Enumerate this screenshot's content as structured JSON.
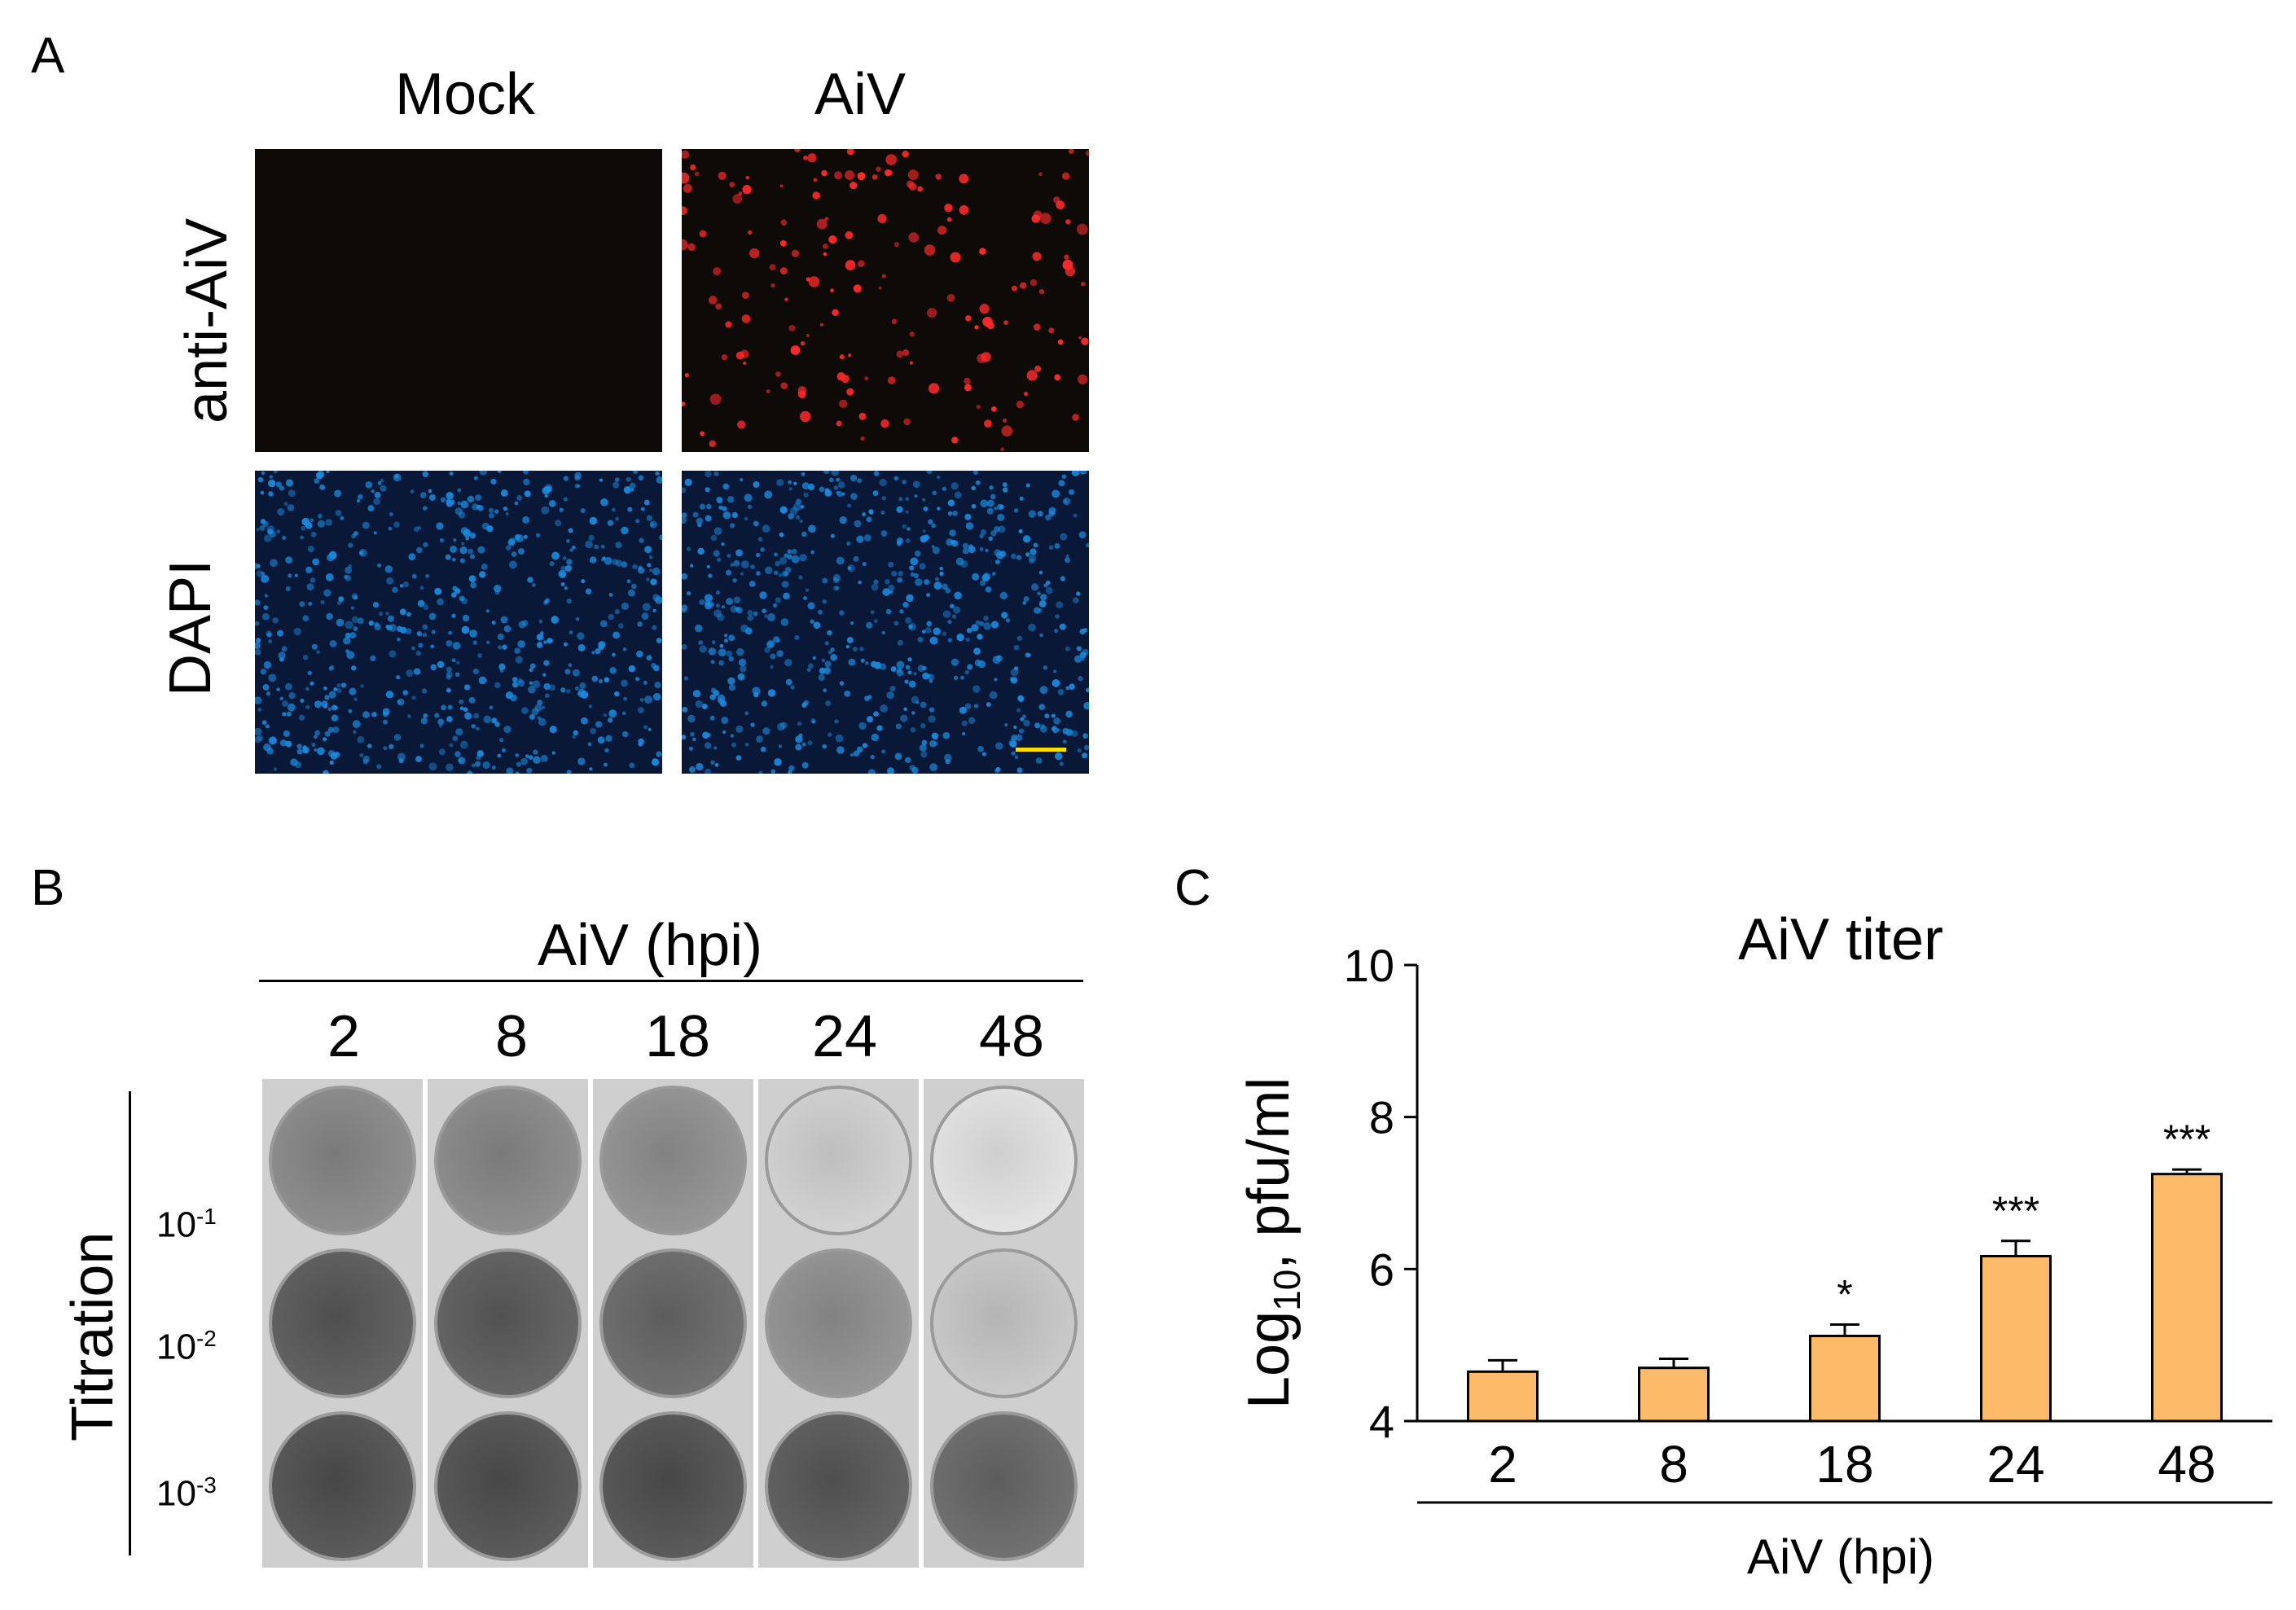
{
  "panels": {
    "A": {
      "letter": "A",
      "col_headers": [
        "Mock",
        "AiV"
      ],
      "row_labels": [
        "anti-AiV",
        "DAPI"
      ]
    },
    "B": {
      "letter": "B",
      "header": "AiV (hpi)",
      "timepoints": [
        "2",
        "8",
        "18",
        "24",
        "48"
      ],
      "row_axis_label": "Titration",
      "dilutions": [
        {
          "base": "10",
          "exp": "-1"
        },
        {
          "base": "10",
          "exp": "-2"
        },
        {
          "base": "10",
          "exp": "-3"
        }
      ]
    },
    "C": {
      "letter": "C"
    }
  },
  "colors": {
    "bar_fill": "#FDBB6A",
    "fluor_red": "#ff2a2a",
    "fluor_blue": "#1a8ce0",
    "scale_bar": "#f5e000"
  },
  "chart_data": {
    "type": "bar",
    "title": "AiV titer",
    "categories": [
      "2",
      "8",
      "18",
      "24",
      "48"
    ],
    "values": [
      4.65,
      4.7,
      5.12,
      6.17,
      7.25
    ],
    "errors": [
      0.15,
      0.12,
      0.15,
      0.2,
      0.06
    ],
    "significance": [
      "",
      "",
      "*",
      "***",
      "***"
    ],
    "xlabel": "AiV (hpi)",
    "ylabel_main": "Log",
    "ylabel_sub": "10",
    "ylabel_rest": ", pfu/ml",
    "ylim": [
      4,
      10
    ],
    "yticks": [
      "4",
      "6",
      "8",
      "10"
    ],
    "grid": false
  }
}
